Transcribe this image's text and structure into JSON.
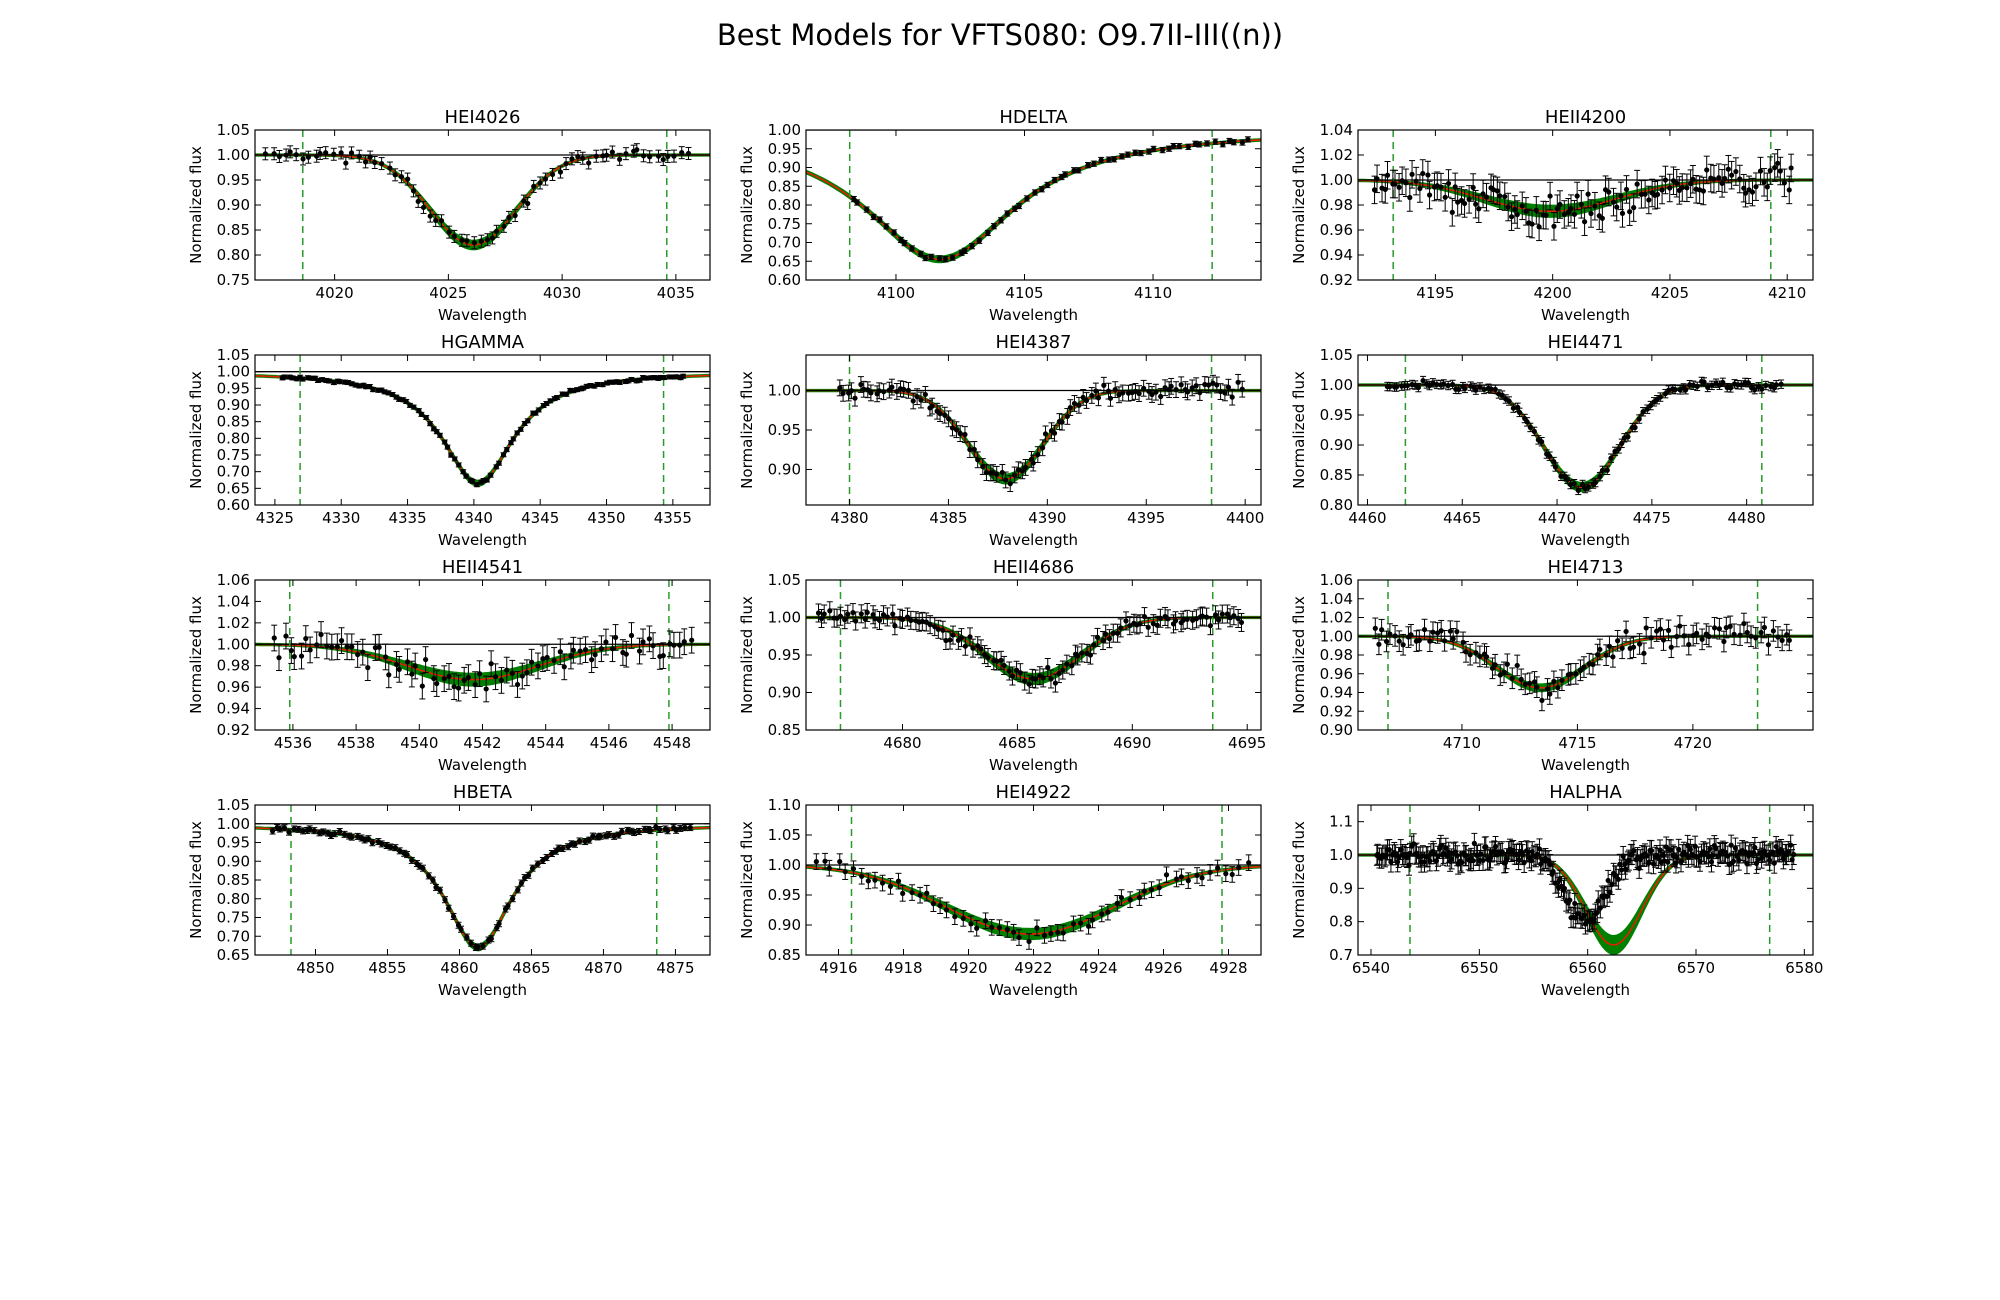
{
  "title": "Best Models for VFTS080: O9.7II-III((n))",
  "chart_data": [
    {
      "type": "line",
      "title": "HEI4026",
      "xlabel": "Wavelength",
      "ylabel": "Normalized flux",
      "xlim": [
        4016.5,
        4036.5
      ],
      "ylim": [
        0.75,
        1.05
      ],
      "xticks": [
        4020,
        4025,
        4030,
        4035
      ],
      "yticks": [
        0.75,
        0.8,
        0.85,
        0.9,
        0.95,
        1.0,
        1.05
      ],
      "ydec": 2,
      "fit_range": [
        4018.6,
        4034.6
      ],
      "model": {
        "center": 4026.1,
        "depth": 0.18,
        "width": 1.9,
        "band": 0.015,
        "profile": "gauss"
      },
      "observed": {
        "x0": 4017.0,
        "x1": 4035.5,
        "n": 70,
        "noise": 0.012,
        "err": 0.012,
        "seed": 3
      }
    },
    {
      "type": "line",
      "title": "HDELTA",
      "xlabel": "Wavelength",
      "ylabel": "Normalized flux",
      "xlim": [
        4096.5,
        4114.2
      ],
      "ylim": [
        0.6,
        1.0
      ],
      "xticks": [
        4100,
        4105,
        4110
      ],
      "yticks": [
        0.6,
        0.65,
        0.7,
        0.75,
        0.8,
        0.85,
        0.9,
        0.95,
        1.0
      ],
      "ydec": 2,
      "fit_range": [
        4098.2,
        4112.3
      ],
      "model": {
        "center": 4101.7,
        "depth": 0.345,
        "width": 3.6,
        "band": 0.012,
        "profile": "lorentz"
      },
      "observed": {
        "x0": 4098.3,
        "x1": 4113.7,
        "n": 60,
        "noise": 0.005,
        "err": 0.007,
        "seed": 5
      }
    },
    {
      "type": "line",
      "title": "HEII4200",
      "xlabel": "Wavelength",
      "ylabel": "Normalized flux",
      "xlim": [
        4191.7,
        4211.1
      ],
      "ylim": [
        0.92,
        1.04
      ],
      "xticks": [
        4195,
        4200,
        4205,
        4210
      ],
      "yticks": [
        0.92,
        0.94,
        0.96,
        0.98,
        1.0,
        1.02,
        1.04
      ],
      "ydec": 2,
      "fit_range": [
        4193.2,
        4209.3
      ],
      "model": {
        "center": 4199.9,
        "depth": 0.025,
        "width": 2.8,
        "band": 0.008,
        "profile": "gauss"
      },
      "observed": {
        "x0": 4192.4,
        "x1": 4210.2,
        "n": 120,
        "noise": 0.012,
        "err": 0.011,
        "seed": 7
      }
    },
    {
      "type": "line",
      "title": "HGAMMA",
      "xlabel": "Wavelength",
      "ylabel": "Normalized flux",
      "xlim": [
        4323.5,
        4357.8
      ],
      "ylim": [
        0.6,
        1.05
      ],
      "xticks": [
        4325,
        4330,
        4335,
        4340,
        4345,
        4350,
        4355
      ],
      "yticks": [
        0.6,
        0.65,
        0.7,
        0.75,
        0.8,
        0.85,
        0.9,
        0.95,
        1.0,
        1.05
      ],
      "ydec": 2,
      "fit_range": [
        4326.9,
        4354.3
      ],
      "model": {
        "center": 4340.3,
        "depth": 0.335,
        "width": 3.3,
        "band": 0.012,
        "profile": "lorentz"
      },
      "observed": {
        "x0": 4325.5,
        "x1": 4355.8,
        "n": 110,
        "noise": 0.005,
        "err": 0.006,
        "seed": 11
      }
    },
    {
      "type": "line",
      "title": "HEI4387",
      "xlabel": "Wavelength",
      "ylabel": "Normalized flux",
      "xlim": [
        4377.8,
        4400.8
      ],
      "ylim": [
        0.855,
        1.045
      ],
      "xticks": [
        4380,
        4385,
        4390,
        4395,
        4400
      ],
      "yticks": [
        0.9,
        0.95,
        1.0
      ],
      "ydec": 2,
      "fit_range": [
        4380.0,
        4398.3
      ],
      "model": {
        "center": 4387.9,
        "depth": 0.112,
        "width": 1.9,
        "band": 0.01,
        "profile": "gauss"
      },
      "observed": {
        "x0": 4379.5,
        "x1": 4399.8,
        "n": 100,
        "noise": 0.009,
        "err": 0.01,
        "seed": 13
      }
    },
    {
      "type": "line",
      "title": "HEI4471",
      "xlabel": "Wavelength",
      "ylabel": "Normalized flux",
      "xlim": [
        4459.5,
        4483.5
      ],
      "ylim": [
        0.8,
        1.05
      ],
      "xticks": [
        4460,
        4465,
        4470,
        4475,
        4480
      ],
      "yticks": [
        0.8,
        0.85,
        0.9,
        0.95,
        1.0,
        1.05
      ],
      "ydec": 2,
      "fit_range": [
        4462.0,
        4480.8
      ],
      "model": {
        "center": 4471.3,
        "depth": 0.17,
        "width": 2.0,
        "band": 0.012,
        "profile": "gauss"
      },
      "observed": {
        "x0": 4461.0,
        "x1": 4481.8,
        "n": 110,
        "noise": 0.006,
        "err": 0.007,
        "seed": 17
      }
    },
    {
      "type": "line",
      "title": "HEII4541",
      "xlabel": "Wavelength",
      "ylabel": "Normalized flux",
      "xlim": [
        4534.8,
        4549.2
      ],
      "ylim": [
        0.92,
        1.06
      ],
      "xticks": [
        4536,
        4538,
        4540,
        4542,
        4544,
        4546,
        4548
      ],
      "yticks": [
        0.92,
        0.94,
        0.96,
        0.98,
        1.0,
        1.02,
        1.04,
        1.06
      ],
      "ydec": 2,
      "fit_range": [
        4535.9,
        4547.9
      ],
      "model": {
        "center": 4541.7,
        "depth": 0.033,
        "width": 2.1,
        "band": 0.01,
        "profile": "gauss"
      },
      "observed": {
        "x0": 4535.4,
        "x1": 4548.6,
        "n": 80,
        "noise": 0.013,
        "err": 0.012,
        "seed": 19
      }
    },
    {
      "type": "line",
      "title": "HEII4686",
      "xlabel": "Wavelength",
      "ylabel": "Normalized flux",
      "xlim": [
        4675.8,
        4695.6
      ],
      "ylim": [
        0.85,
        1.05
      ],
      "xticks": [
        4680,
        4685,
        4690,
        4695
      ],
      "yticks": [
        0.85,
        0.9,
        0.95,
        1.0,
        1.05
      ],
      "ydec": 2,
      "fit_range": [
        4677.3,
        4693.5
      ],
      "model": {
        "center": 4685.7,
        "depth": 0.082,
        "width": 2.1,
        "band": 0.012,
        "profile": "gauss"
      },
      "observed": {
        "x0": 4676.3,
        "x1": 4694.8,
        "n": 110,
        "noise": 0.011,
        "err": 0.012,
        "seed": 23
      }
    },
    {
      "type": "line",
      "title": "HEI4713",
      "xlabel": "Wavelength",
      "ylabel": "Normalized flux",
      "xlim": [
        4705.5,
        4725.2
      ],
      "ylim": [
        0.9,
        1.06
      ],
      "xticks": [
        4710,
        4715,
        4720
      ],
      "yticks": [
        0.9,
        0.92,
        0.94,
        0.96,
        0.98,
        1.0,
        1.02,
        1.04,
        1.06
      ],
      "ydec": 2,
      "fit_range": [
        4706.8,
        4722.8
      ],
      "model": {
        "center": 4713.4,
        "depth": 0.055,
        "width": 1.9,
        "band": 0.006,
        "profile": "gauss"
      },
      "observed": {
        "x0": 4706.2,
        "x1": 4724.2,
        "n": 100,
        "noise": 0.013,
        "err": 0.011,
        "seed": 29
      }
    },
    {
      "type": "line",
      "title": "HBETA",
      "xlabel": "Wavelength",
      "ylabel": "Normalized flux",
      "xlim": [
        4845.8,
        4877.4
      ],
      "ylim": [
        0.65,
        1.05
      ],
      "xticks": [
        4850,
        4855,
        4860,
        4865,
        4870,
        4875
      ],
      "yticks": [
        0.65,
        0.7,
        0.75,
        0.8,
        0.85,
        0.9,
        0.95,
        1.0,
        1.05
      ],
      "ydec": 2,
      "fit_range": [
        4848.3,
        4873.7
      ],
      "model": {
        "center": 4861.3,
        "depth": 0.33,
        "width": 2.9,
        "band": 0.012,
        "profile": "lorentz"
      },
      "observed": {
        "x0": 4847.0,
        "x1": 4876.0,
        "n": 100,
        "noise": 0.006,
        "err": 0.008,
        "seed": 31
      }
    },
    {
      "type": "line",
      "title": "HEI4922",
      "xlabel": "Wavelength",
      "ylabel": "Normalized flux",
      "xlim": [
        4915.0,
        4929.0
      ],
      "ylim": [
        0.85,
        1.1
      ],
      "xticks": [
        4916,
        4918,
        4920,
        4922,
        4924,
        4926,
        4928
      ],
      "yticks": [
        0.85,
        0.9,
        0.95,
        1.0,
        1.05,
        1.1
      ],
      "ydec": 2,
      "fit_range": [
        4916.4,
        4927.8
      ],
      "model": {
        "center": 4921.9,
        "depth": 0.115,
        "width": 2.6,
        "band": 0.015,
        "profile": "gauss"
      },
      "observed": {
        "x0": 4915.3,
        "x1": 4928.6,
        "n": 60,
        "noise": 0.013,
        "err": 0.013,
        "seed": 37
      }
    },
    {
      "type": "line",
      "title": "HALPHA",
      "xlabel": "Wavelength",
      "ylabel": "Normalized flux",
      "xlim": [
        6538.8,
        6580.8
      ],
      "ylim": [
        0.7,
        1.15
      ],
      "xticks": [
        6540,
        6550,
        6560,
        6570,
        6580
      ],
      "yticks": [
        0.7,
        0.8,
        0.9,
        1.0,
        1.1
      ],
      "ydec": 1,
      "fit_range": [
        6543.6,
        6576.8
      ],
      "model": {
        "center": 6562.4,
        "depth": 0.27,
        "width": 2.6,
        "band": 0.05,
        "profile": "gauss"
      },
      "observed": {
        "x0": 6540.5,
        "x1": 6579.0,
        "n": 260,
        "noise": 0.028,
        "err": 0.03,
        "seed": 41,
        "dip": {
          "center": 6559.7,
          "depth": 0.2,
          "width": 1.8
        }
      }
    }
  ]
}
